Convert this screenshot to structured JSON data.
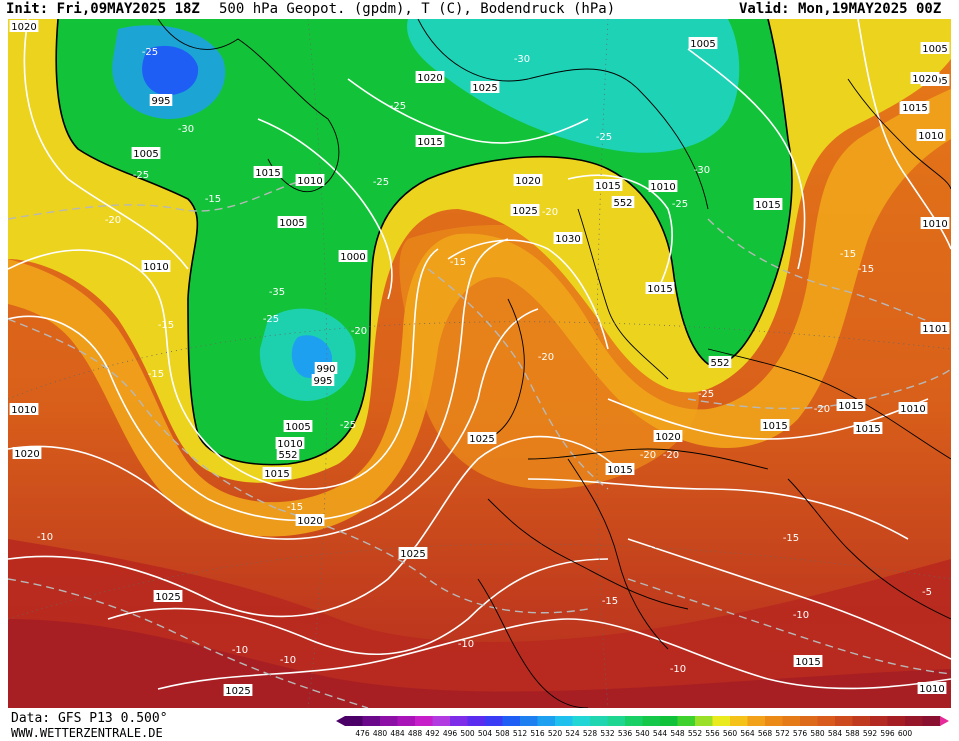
{
  "header": {
    "init": "Init: Fri,09MAY2025 18Z",
    "title": "500 hPa Geopot. (gpdm), T (C), Bodendruck (hPa)",
    "valid": "Valid: Mon,19MAY2025 00Z"
  },
  "footer": {
    "data_source": "Data: GFS P13 0.500°",
    "website": "WWW.WETTERZENTRALE.DE"
  },
  "legend": {
    "values": [
      "476",
      "480",
      "484",
      "488",
      "492",
      "496",
      "500",
      "504",
      "508",
      "512",
      "516",
      "520",
      "524",
      "528",
      "532",
      "536",
      "540",
      "544",
      "548",
      "552",
      "556",
      "560",
      "564",
      "568",
      "572",
      "576",
      "580",
      "584",
      "588",
      "592",
      "596",
      "600"
    ],
    "colors": [
      "#4a0066",
      "#6a0a8a",
      "#8c0fa6",
      "#a814b8",
      "#c61ec8",
      "#b13be0",
      "#7d2ce8",
      "#5a2cf0",
      "#3a3cf5",
      "#1f5ef5",
      "#1e7ff0",
      "#1ea0f0",
      "#20c0ee",
      "#22d6d6",
      "#20d6b0",
      "#1ed690",
      "#19d066",
      "#16c84a",
      "#0fc23a",
      "#3fd12e",
      "#9ae028",
      "#eaeb1e",
      "#f5c21a",
      "#f2a21a",
      "#ec8a18",
      "#e47a18",
      "#dd6a1a",
      "#d85a1c",
      "#cc4a1e",
      "#bf3a1e",
      "#b22a22",
      "#a41e24",
      "#96162a",
      "#8a1030"
    ],
    "arrow_left_color": "#4a0066",
    "arrow_right_color": "#e62a9a"
  },
  "map": {
    "pressure_labels": [
      "1005",
      "995",
      "1005",
      "1015",
      "1010",
      "1005",
      "1000",
      "990",
      "995",
      "1005",
      "1010",
      "1015",
      "1020",
      "1025",
      "1020",
      "1015",
      "1015",
      "1010",
      "1020",
      "1025",
      "1030",
      "1015",
      "1015",
      "1010",
      "1005",
      "1025",
      "1020",
      "1015",
      "1015",
      "1015",
      "1010",
      "1005",
      "1020",
      "1010",
      "1015",
      "1020",
      "1025",
      "1025",
      "1015",
      "1010",
      "1010",
      "1020",
      "1015",
      "1025",
      "1010",
      "1015",
      "1101"
    ],
    "temp_labels": [
      "-25",
      "-30",
      "-25",
      "-20",
      "-15",
      "-15",
      "-25",
      "-35",
      "-25",
      "-30",
      "-25",
      "-30",
      "-15",
      "-25",
      "-25",
      "-20",
      "-25",
      "-15",
      "-20",
      "-20",
      "-25",
      "-20",
      "-15",
      "-15",
      "-20",
      "-10",
      "-15",
      "-15",
      "-10",
      "-10",
      "-10",
      "-10",
      "-5",
      "-20",
      "-15",
      "-10"
    ],
    "geopotential_labels": [
      "552",
      "552",
      "552"
    ]
  }
}
